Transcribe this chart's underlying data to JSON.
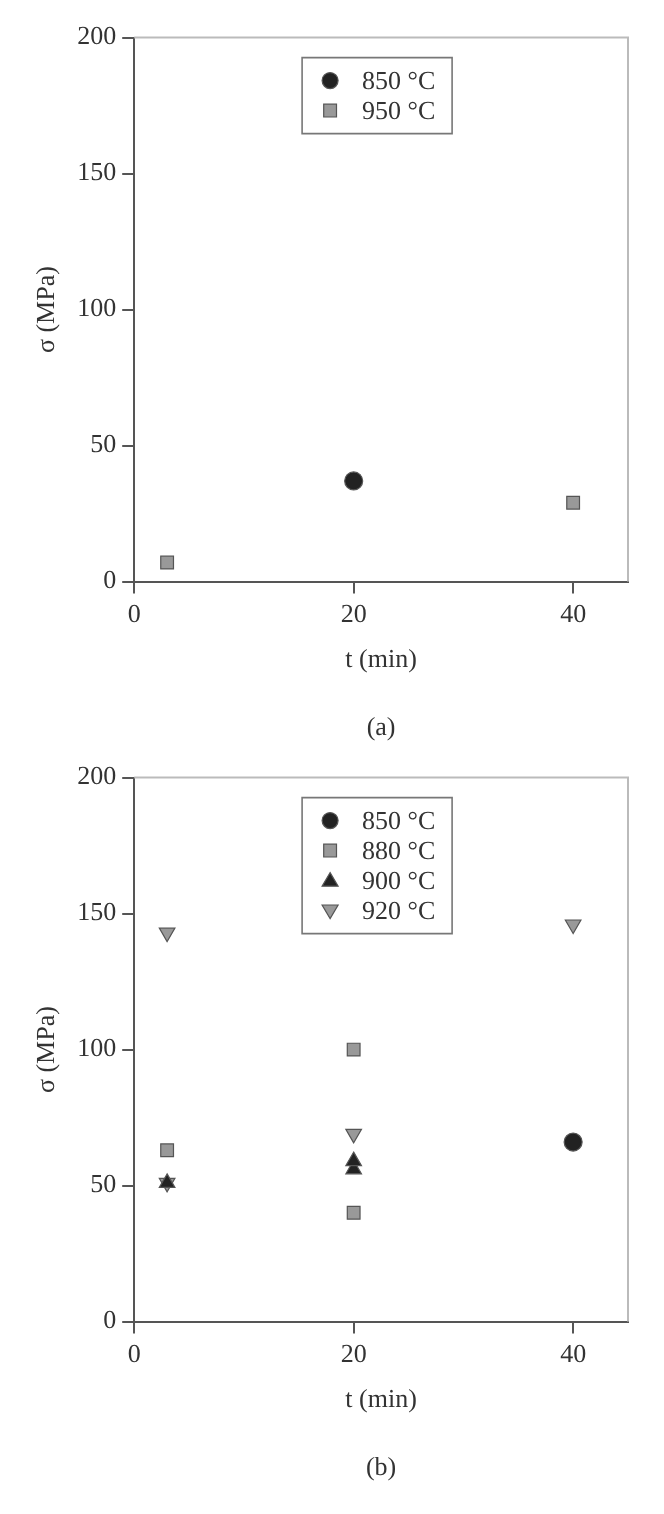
{
  "chart_data": [
    {
      "type": "scatter",
      "xlabel": "t (min)",
      "ylabel": "σ (MPa)",
      "xlim": [
        0,
        45
      ],
      "xticks": [
        0,
        20,
        40
      ],
      "ylim": [
        0,
        200
      ],
      "yticks": [
        0,
        50,
        100,
        150,
        200
      ],
      "grid": false,
      "legend": "top",
      "annotations": [
        "(a)"
      ],
      "series": [
        {
          "name": "850 °C",
          "color": "#222222",
          "marker": "circle",
          "x": [
            20
          ],
          "values": [
            37
          ]
        },
        {
          "name": "950 °C",
          "color": "#999999",
          "marker": "square",
          "x": [
            3,
            40
          ],
          "values": [
            7,
            29
          ]
        }
      ]
    },
    {
      "type": "scatter",
      "xlabel": "t (min)",
      "ylabel": "σ (MPa)",
      "xlim": [
        0,
        45
      ],
      "xticks": [
        0,
        20,
        40
      ],
      "ylim": [
        0,
        200
      ],
      "yticks": [
        0,
        50,
        100,
        150,
        200
      ],
      "grid": false,
      "legend": "top",
      "annotations": [
        "(b)"
      ],
      "series": [
        {
          "name": "850 °C",
          "color": "#222222",
          "marker": "circle",
          "x": [
            40
          ],
          "values": [
            66
          ]
        },
        {
          "name": "880 °C",
          "color": "#999999",
          "marker": "square",
          "x": [
            3,
            20,
            20
          ],
          "values": [
            63,
            100,
            40
          ]
        },
        {
          "name": "900 °C",
          "color": "#222222",
          "marker": "triangle",
          "x": [
            3,
            20,
            20
          ],
          "values": [
            51,
            56,
            59
          ]
        },
        {
          "name": "920 °C",
          "color": "#999999",
          "marker": "triangle-down",
          "x": [
            3,
            3,
            20,
            40
          ],
          "values": [
            143,
            51,
            69,
            146
          ]
        }
      ]
    }
  ]
}
